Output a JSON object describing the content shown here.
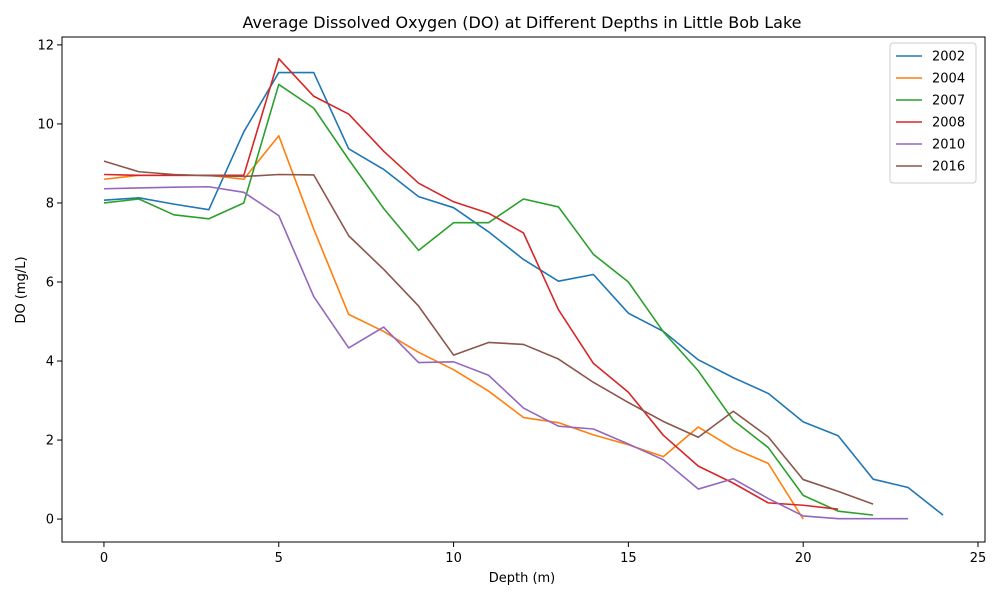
{
  "chart_data": {
    "type": "line",
    "title": "Average Dissolved Oxygen (DO) at Different Depths in Little Bob Lake",
    "xlabel": "Depth (m)",
    "ylabel": "DO (mg/L)",
    "xlim": [
      -1.2,
      25.2
    ],
    "ylim": [
      -0.58,
      12.2
    ],
    "xticks": [
      0,
      5,
      10,
      15,
      20,
      25
    ],
    "yticks": [
      0,
      2,
      4,
      6,
      8,
      10,
      12
    ],
    "grid": false,
    "legend_position": "top-right",
    "series": [
      {
        "name": "2002",
        "color": "#1f77b4",
        "x": [
          0,
          1,
          2,
          3,
          4,
          5,
          6,
          7,
          8,
          9,
          10,
          11,
          12,
          13,
          14,
          15,
          16,
          17,
          18,
          19,
          20,
          21,
          22,
          23,
          24
        ],
        "y": [
          8.07,
          8.13,
          7.97,
          7.83,
          9.8,
          11.3,
          11.3,
          9.37,
          8.85,
          8.16,
          7.88,
          7.27,
          6.57,
          6.02,
          6.19,
          5.21,
          4.75,
          4.03,
          3.58,
          3.18,
          2.46,
          2.11,
          1.01,
          0.8,
          0.1
        ]
      },
      {
        "name": "2004",
        "color": "#ff7f0e",
        "x": [
          0,
          1,
          2,
          3,
          4,
          5,
          6,
          7,
          8,
          9,
          10,
          11,
          12,
          13,
          14,
          15,
          16,
          17,
          18,
          19,
          20
        ],
        "y": [
          8.6,
          8.7,
          8.7,
          8.7,
          8.6,
          9.7,
          7.34,
          5.18,
          4.75,
          4.22,
          3.78,
          3.24,
          2.57,
          2.44,
          2.13,
          1.88,
          1.58,
          2.33,
          1.79,
          1.41,
          0.0
        ]
      },
      {
        "name": "2007",
        "color": "#2ca02c",
        "x": [
          0,
          1,
          2,
          3,
          4,
          5,
          6,
          7,
          8,
          9,
          10,
          11,
          12,
          13,
          14,
          15,
          16,
          17,
          18,
          19,
          20,
          21,
          22
        ],
        "y": [
          8.0,
          8.1,
          7.7,
          7.6,
          8.0,
          11.0,
          10.4,
          9.1,
          7.86,
          6.8,
          7.5,
          7.5,
          8.1,
          7.9,
          6.7,
          6.0,
          4.74,
          3.75,
          2.5,
          1.81,
          0.6,
          0.2,
          0.1
        ]
      },
      {
        "name": "2008",
        "color": "#d62728",
        "x": [
          0,
          1,
          2,
          3,
          4,
          5,
          6,
          7,
          8,
          9,
          10,
          11,
          12,
          13,
          14,
          15,
          16,
          17,
          18,
          19,
          20,
          21
        ],
        "y": [
          8.72,
          8.7,
          8.7,
          8.7,
          8.7,
          11.65,
          10.7,
          10.25,
          9.31,
          8.5,
          8.03,
          7.74,
          7.24,
          5.3,
          3.94,
          3.21,
          2.12,
          1.34,
          0.91,
          0.41,
          0.35,
          0.25
        ]
      },
      {
        "name": "2010",
        "color": "#9467bd",
        "x": [
          0,
          1,
          2,
          3,
          4,
          5,
          6,
          7,
          8,
          9,
          10,
          11,
          12,
          13,
          14,
          15,
          16,
          17,
          18,
          19,
          20,
          21,
          22,
          23
        ],
        "y": [
          8.36,
          8.38,
          8.4,
          8.41,
          8.27,
          7.68,
          5.63,
          4.33,
          4.86,
          3.96,
          3.98,
          3.64,
          2.81,
          2.35,
          2.28,
          1.9,
          1.5,
          0.76,
          1.02,
          0.52,
          0.08,
          0.01,
          0.01,
          0.01
        ]
      },
      {
        "name": "2016",
        "color": "#8c564b",
        "x": [
          0,
          1,
          2,
          3,
          4,
          5,
          6,
          7,
          8,
          9,
          10,
          11,
          12,
          13,
          14,
          15,
          16,
          17,
          18,
          19,
          20,
          21,
          22
        ],
        "y": [
          9.06,
          8.79,
          8.72,
          8.69,
          8.67,
          8.72,
          8.71,
          7.17,
          6.32,
          5.39,
          4.15,
          4.47,
          4.42,
          4.05,
          3.46,
          2.95,
          2.47,
          2.07,
          2.73,
          2.08,
          1.0,
          0.7,
          0.38
        ]
      }
    ]
  }
}
